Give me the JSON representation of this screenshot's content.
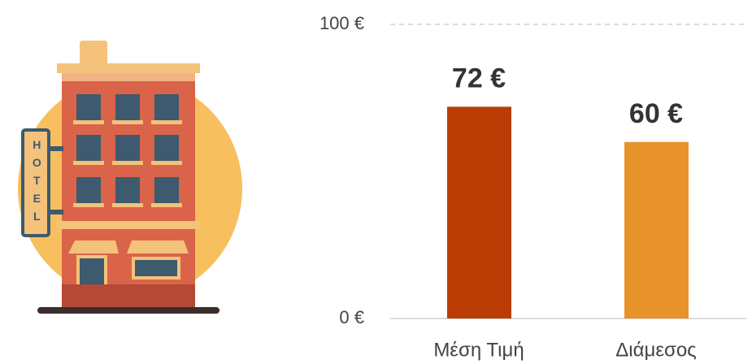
{
  "illustration": {
    "sign": "HOTEL"
  },
  "chart_data": {
    "type": "bar",
    "categories": [
      "Μέση Τιμή",
      "Διάμεσος"
    ],
    "values": [
      72,
      60
    ],
    "value_labels": [
      "72 €",
      "60 €"
    ],
    "colors": [
      "#bb3d06",
      "#e7922b"
    ],
    "ylim": [
      0,
      100
    ],
    "yticks": [
      {
        "value": 0,
        "label": "0 €"
      },
      {
        "value": 100,
        "label": "100 €"
      }
    ],
    "grid": true
  }
}
